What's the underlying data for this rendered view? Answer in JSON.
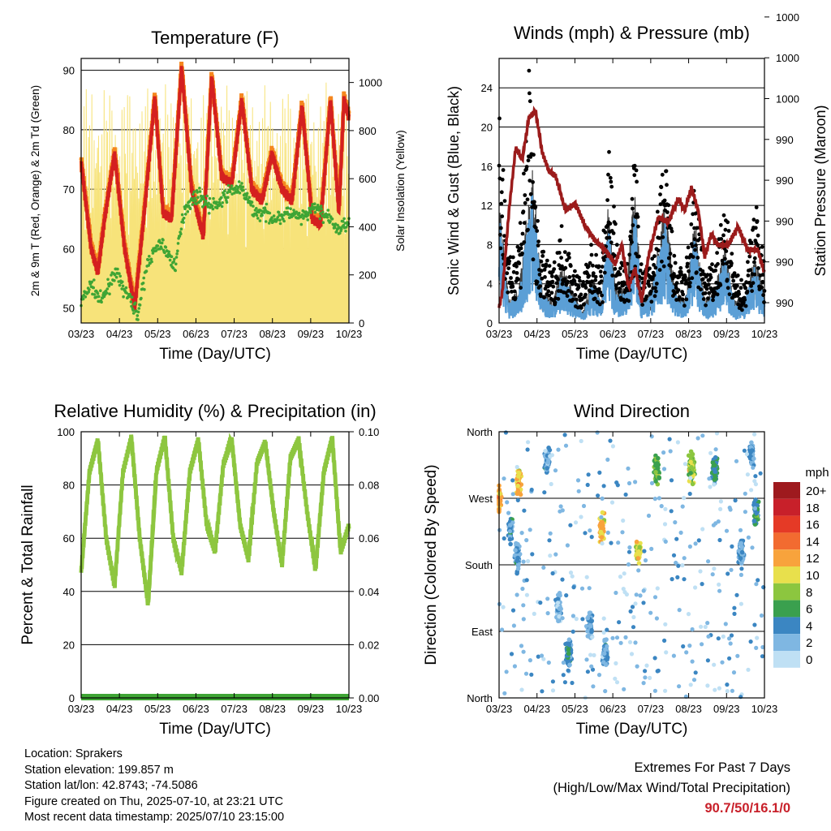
{
  "colors": {
    "red": "#d42020",
    "orange": "#f5871f",
    "green": "#3fa535",
    "yellow": "#f7e37a",
    "black": "#000000",
    "blue": "#5b9fd6",
    "maroon": "#9b1b1b",
    "rh_green": "#8dc63f"
  },
  "x_ticks": [
    "03/23",
    "04/23",
    "05/23",
    "06/23",
    "07/23",
    "08/23",
    "09/23",
    "10/23"
  ],
  "panels": {
    "temperature": {
      "title": "Temperature (F)",
      "xlabel": "Time (Day/UTC)",
      "ylabel_left": "2m & 9m T (Red, Orange) & 2m Td (Green)",
      "ylabel_right": "Solar Insolation (Yellow)",
      "yticks_left": [
        "50",
        "60",
        "70",
        "80",
        "90"
      ],
      "yticks_right": [
        "0",
        "200",
        "400",
        "600",
        "800",
        "1000"
      ]
    },
    "winds": {
      "title": "Winds (mph) & Pressure (mb)",
      "xlabel": "Time (Day/UTC)",
      "ylabel_left": "Sonic Wind & Gust (Blue, Black)",
      "ylabel_right": "Station Pressure (Maroon)",
      "yticks_left": [
        "0",
        "4",
        "8",
        "12",
        "16",
        "20",
        "24"
      ],
      "yticks_right": [
        "990",
        "990",
        "990",
        "990",
        "990",
        "1000",
        "1000",
        "1000"
      ]
    },
    "humidity": {
      "title": "Relative Humidity (%) & Precipitation (in)",
      "xlabel": "Time (Day/UTC)",
      "ylabel_left": "Percent & Total Rainfall",
      "yticks_left": [
        "0",
        "20",
        "40",
        "60",
        "80",
        "100"
      ],
      "yticks_right": [
        "0.00",
        "0.02",
        "0.04",
        "0.06",
        "0.08",
        "0.10"
      ]
    },
    "direction": {
      "title": "Wind Direction",
      "xlabel": "Time (Day/UTC)",
      "ylabel_left": "Direction (Colored By Speed)",
      "yticks_left": [
        "North",
        "East",
        "South",
        "West",
        "North"
      ],
      "legend_title": "mph",
      "legend": [
        {
          "label": "20+",
          "color": "#9e1a1e"
        },
        {
          "label": "18",
          "color": "#c8202a"
        },
        {
          "label": "16",
          "color": "#e53a26"
        },
        {
          "label": "14",
          "color": "#f26b30"
        },
        {
          "label": "12",
          "color": "#f8a33c"
        },
        {
          "label": "10",
          "color": "#e8e04c"
        },
        {
          "label": "8",
          "color": "#8cc63f"
        },
        {
          "label": "6",
          "color": "#3aa04e"
        },
        {
          "label": "4",
          "color": "#3b86c2"
        },
        {
          "label": "2",
          "color": "#7fb7e2"
        },
        {
          "label": "0",
          "color": "#bfe0f4"
        }
      ]
    }
  },
  "info": {
    "location": "Location: Sprakers",
    "elevation": "Station elevation: 199.857 m",
    "latlon": "Station lat/lon: 42.8743; -74.5086",
    "created": "Figure created on Thu, 2025-07-10, at 23:21 UTC",
    "recent": "Most recent data timestamp: 2025/07/10 23:15:00"
  },
  "extremes": {
    "title": "Extremes For Past 7 Days",
    "subtitle": "(High/Low/Max Wind/Total Precipitation)",
    "values": "90.7/50/16.1/0"
  },
  "chart_data": [
    {
      "type": "line",
      "title": "Temperature (F)",
      "ylim": [
        47.5,
        92
      ],
      "y2lim": [
        0,
        1100
      ],
      "x_range": [
        0,
        8
      ],
      "series": [
        {
          "name": "2m T",
          "color": "#d42020",
          "x": [
            0,
            0.3,
            0.5,
            0.7,
            1.0,
            1.3,
            1.6,
            1.9,
            2.2,
            2.45,
            2.7,
            3.0,
            3.3,
            3.65,
            3.9,
            4.2,
            4.5,
            4.8,
            5.1,
            5.4,
            5.7,
            6.0,
            6.3,
            6.6,
            6.9,
            7.15,
            7.45,
            7.7,
            7.85,
            8.0
          ],
          "y": [
            74.5,
            60,
            56,
            65,
            76,
            60,
            50,
            67,
            85.5,
            66,
            65,
            90.5,
            70,
            62,
            89,
            72,
            71,
            85,
            70,
            68,
            76,
            70,
            68,
            84,
            65,
            64,
            85,
            66,
            85,
            82
          ]
        },
        {
          "name": "2m Td",
          "color": "#3fa535",
          "x": [
            0,
            0.3,
            0.6,
            1.0,
            1.4,
            1.7,
            2.0,
            2.4,
            2.8,
            3.1,
            3.5,
            3.9,
            4.2,
            4.5,
            4.8,
            5.2,
            5.5,
            5.8,
            6.2,
            6.6,
            7.0,
            7.4,
            7.7,
            8.0
          ],
          "y": [
            51,
            54,
            51,
            56,
            52,
            49,
            58,
            61,
            57,
            67,
            69,
            67,
            68,
            70,
            70,
            66,
            66,
            65,
            66,
            65,
            67,
            65,
            63,
            65
          ]
        }
      ]
    },
    {
      "type": "line",
      "title": "Winds (mph) & Pressure (mb)",
      "ylim": [
        0,
        27
      ],
      "x_range": [
        0,
        8
      ],
      "series": [
        {
          "name": "Sonic Wind",
          "color": "#5b9fd6",
          "x": [
            0,
            0.3,
            0.6,
            1.0,
            1.3,
            1.6,
            1.9,
            2.2,
            2.5,
            2.8,
            3.1,
            3.3,
            3.5,
            3.8,
            4.1,
            4.3,
            4.6,
            5.0,
            5.3,
            5.6,
            5.9,
            6.2,
            6.5,
            6.8,
            7.1,
            7.4,
            7.7,
            8.0
          ],
          "y": [
            11,
            2,
            3,
            14,
            3,
            2,
            5,
            3,
            1,
            4,
            2,
            11,
            3,
            3,
            12,
            2,
            3,
            11,
            3,
            2,
            9,
            2,
            3,
            7,
            2,
            2,
            6,
            3
          ]
        },
        {
          "name": "Gust",
          "color": "#000000",
          "x": [
            0,
            0.3,
            0.6,
            0.9,
            1.2,
            1.6,
            1.9,
            2.2,
            2.5,
            2.8,
            3.1,
            3.3,
            3.6,
            3.9,
            4.1,
            4.3,
            4.6,
            5.0,
            5.3,
            5.6,
            5.9,
            6.2,
            6.5,
            6.8,
            7.1,
            7.4,
            7.7,
            8.0
          ],
          "y": [
            23,
            6,
            9,
            25,
            8,
            5,
            10,
            6,
            4,
            8,
            5,
            20,
            6,
            6,
            18,
            5,
            6,
            17,
            6,
            5,
            14,
            5,
            6,
            12,
            5,
            4,
            13,
            6
          ]
        },
        {
          "name": "Station Pressure",
          "color": "#9b1b1b",
          "y_scale": "0 to 1",
          "x": [
            0,
            0.1,
            0.3,
            0.5,
            0.7,
            0.9,
            1.1,
            1.3,
            1.5,
            1.7,
            2.0,
            2.3,
            2.6,
            2.9,
            3.2,
            3.5,
            3.7,
            3.9,
            4.1,
            4.3,
            4.5,
            4.8,
            5.1,
            5.4,
            5.6,
            5.8,
            6.0,
            6.2,
            6.4,
            6.6,
            6.9,
            7.2,
            7.5,
            7.8,
            8.0
          ],
          "y": [
            0.03,
            0.1,
            0.45,
            0.72,
            0.67,
            0.85,
            0.88,
            0.7,
            0.62,
            0.6,
            0.45,
            0.48,
            0.38,
            0.32,
            0.28,
            0.22,
            0.3,
            0.12,
            0.2,
            0.06,
            0.25,
            0.42,
            0.4,
            0.5,
            0.45,
            0.55,
            0.45,
            0.25,
            0.35,
            0.3,
            0.3,
            0.38,
            0.28,
            0.28,
            0.18
          ]
        }
      ]
    },
    {
      "type": "line",
      "title": "Relative Humidity (%) & Precipitation (in)",
      "ylim": [
        0,
        100
      ],
      "y2lim": [
        0,
        0.1
      ],
      "x_range": [
        0,
        8
      ],
      "series": [
        {
          "name": "RH",
          "color": "#8dc63f",
          "x": [
            0,
            0.25,
            0.5,
            0.75,
            1.0,
            1.25,
            1.5,
            1.75,
            2.0,
            2.25,
            2.5,
            2.75,
            3.0,
            3.25,
            3.5,
            3.75,
            4.0,
            4.25,
            4.5,
            4.75,
            5.0,
            5.25,
            5.5,
            5.75,
            6.0,
            6.25,
            6.5,
            6.75,
            7.0,
            7.25,
            7.5,
            7.75,
            8.0
          ],
          "y": [
            47,
            85,
            97,
            60,
            42,
            85,
            98,
            60,
            35,
            85,
            98,
            60,
            47,
            85,
            97,
            65,
            55,
            88,
            97,
            65,
            52,
            88,
            96,
            70,
            50,
            90,
            97,
            70,
            48,
            85,
            98,
            55,
            65
          ]
        },
        {
          "name": "Total Rainfall",
          "color": "#3fa535",
          "x": [
            0,
            8
          ],
          "y": [
            0,
            0
          ]
        }
      ]
    },
    {
      "type": "scatter",
      "title": "Wind Direction",
      "ylim": [
        0,
        360
      ],
      "x_range": [
        0,
        8
      ],
      "clusters": [
        {
          "x": 0.6,
          "y": 290,
          "s": 11,
          "n": 60
        },
        {
          "x": 0.0,
          "y": 270,
          "s": 12,
          "n": 40
        },
        {
          "x": 0.35,
          "y": 230,
          "s": 3,
          "n": 40
        },
        {
          "x": 0.55,
          "y": 190,
          "s": 3,
          "n": 50
        },
        {
          "x": 1.8,
          "y": 120,
          "s": 2,
          "n": 80
        },
        {
          "x": 2.1,
          "y": 60,
          "s": 4,
          "n": 80
        },
        {
          "x": 1.45,
          "y": 320,
          "s": 3,
          "n": 60
        },
        {
          "x": 2.75,
          "y": 100,
          "s": 3,
          "n": 60
        },
        {
          "x": 3.1,
          "y": 230,
          "s": 11,
          "n": 50
        },
        {
          "x": 3.2,
          "y": 60,
          "s": 3,
          "n": 90
        },
        {
          "x": 4.2,
          "y": 200,
          "s": 10,
          "n": 50
        },
        {
          "x": 4.75,
          "y": 310,
          "s": 7,
          "n": 60
        },
        {
          "x": 5.8,
          "y": 310,
          "s": 8,
          "n": 120
        },
        {
          "x": 6.5,
          "y": 310,
          "s": 5,
          "n": 80
        },
        {
          "x": 7.3,
          "y": 200,
          "s": 3,
          "n": 80
        },
        {
          "x": 7.75,
          "y": 250,
          "s": 5,
          "n": 60
        },
        {
          "x": 7.6,
          "y": 330,
          "s": 3,
          "n": 40
        }
      ]
    }
  ]
}
